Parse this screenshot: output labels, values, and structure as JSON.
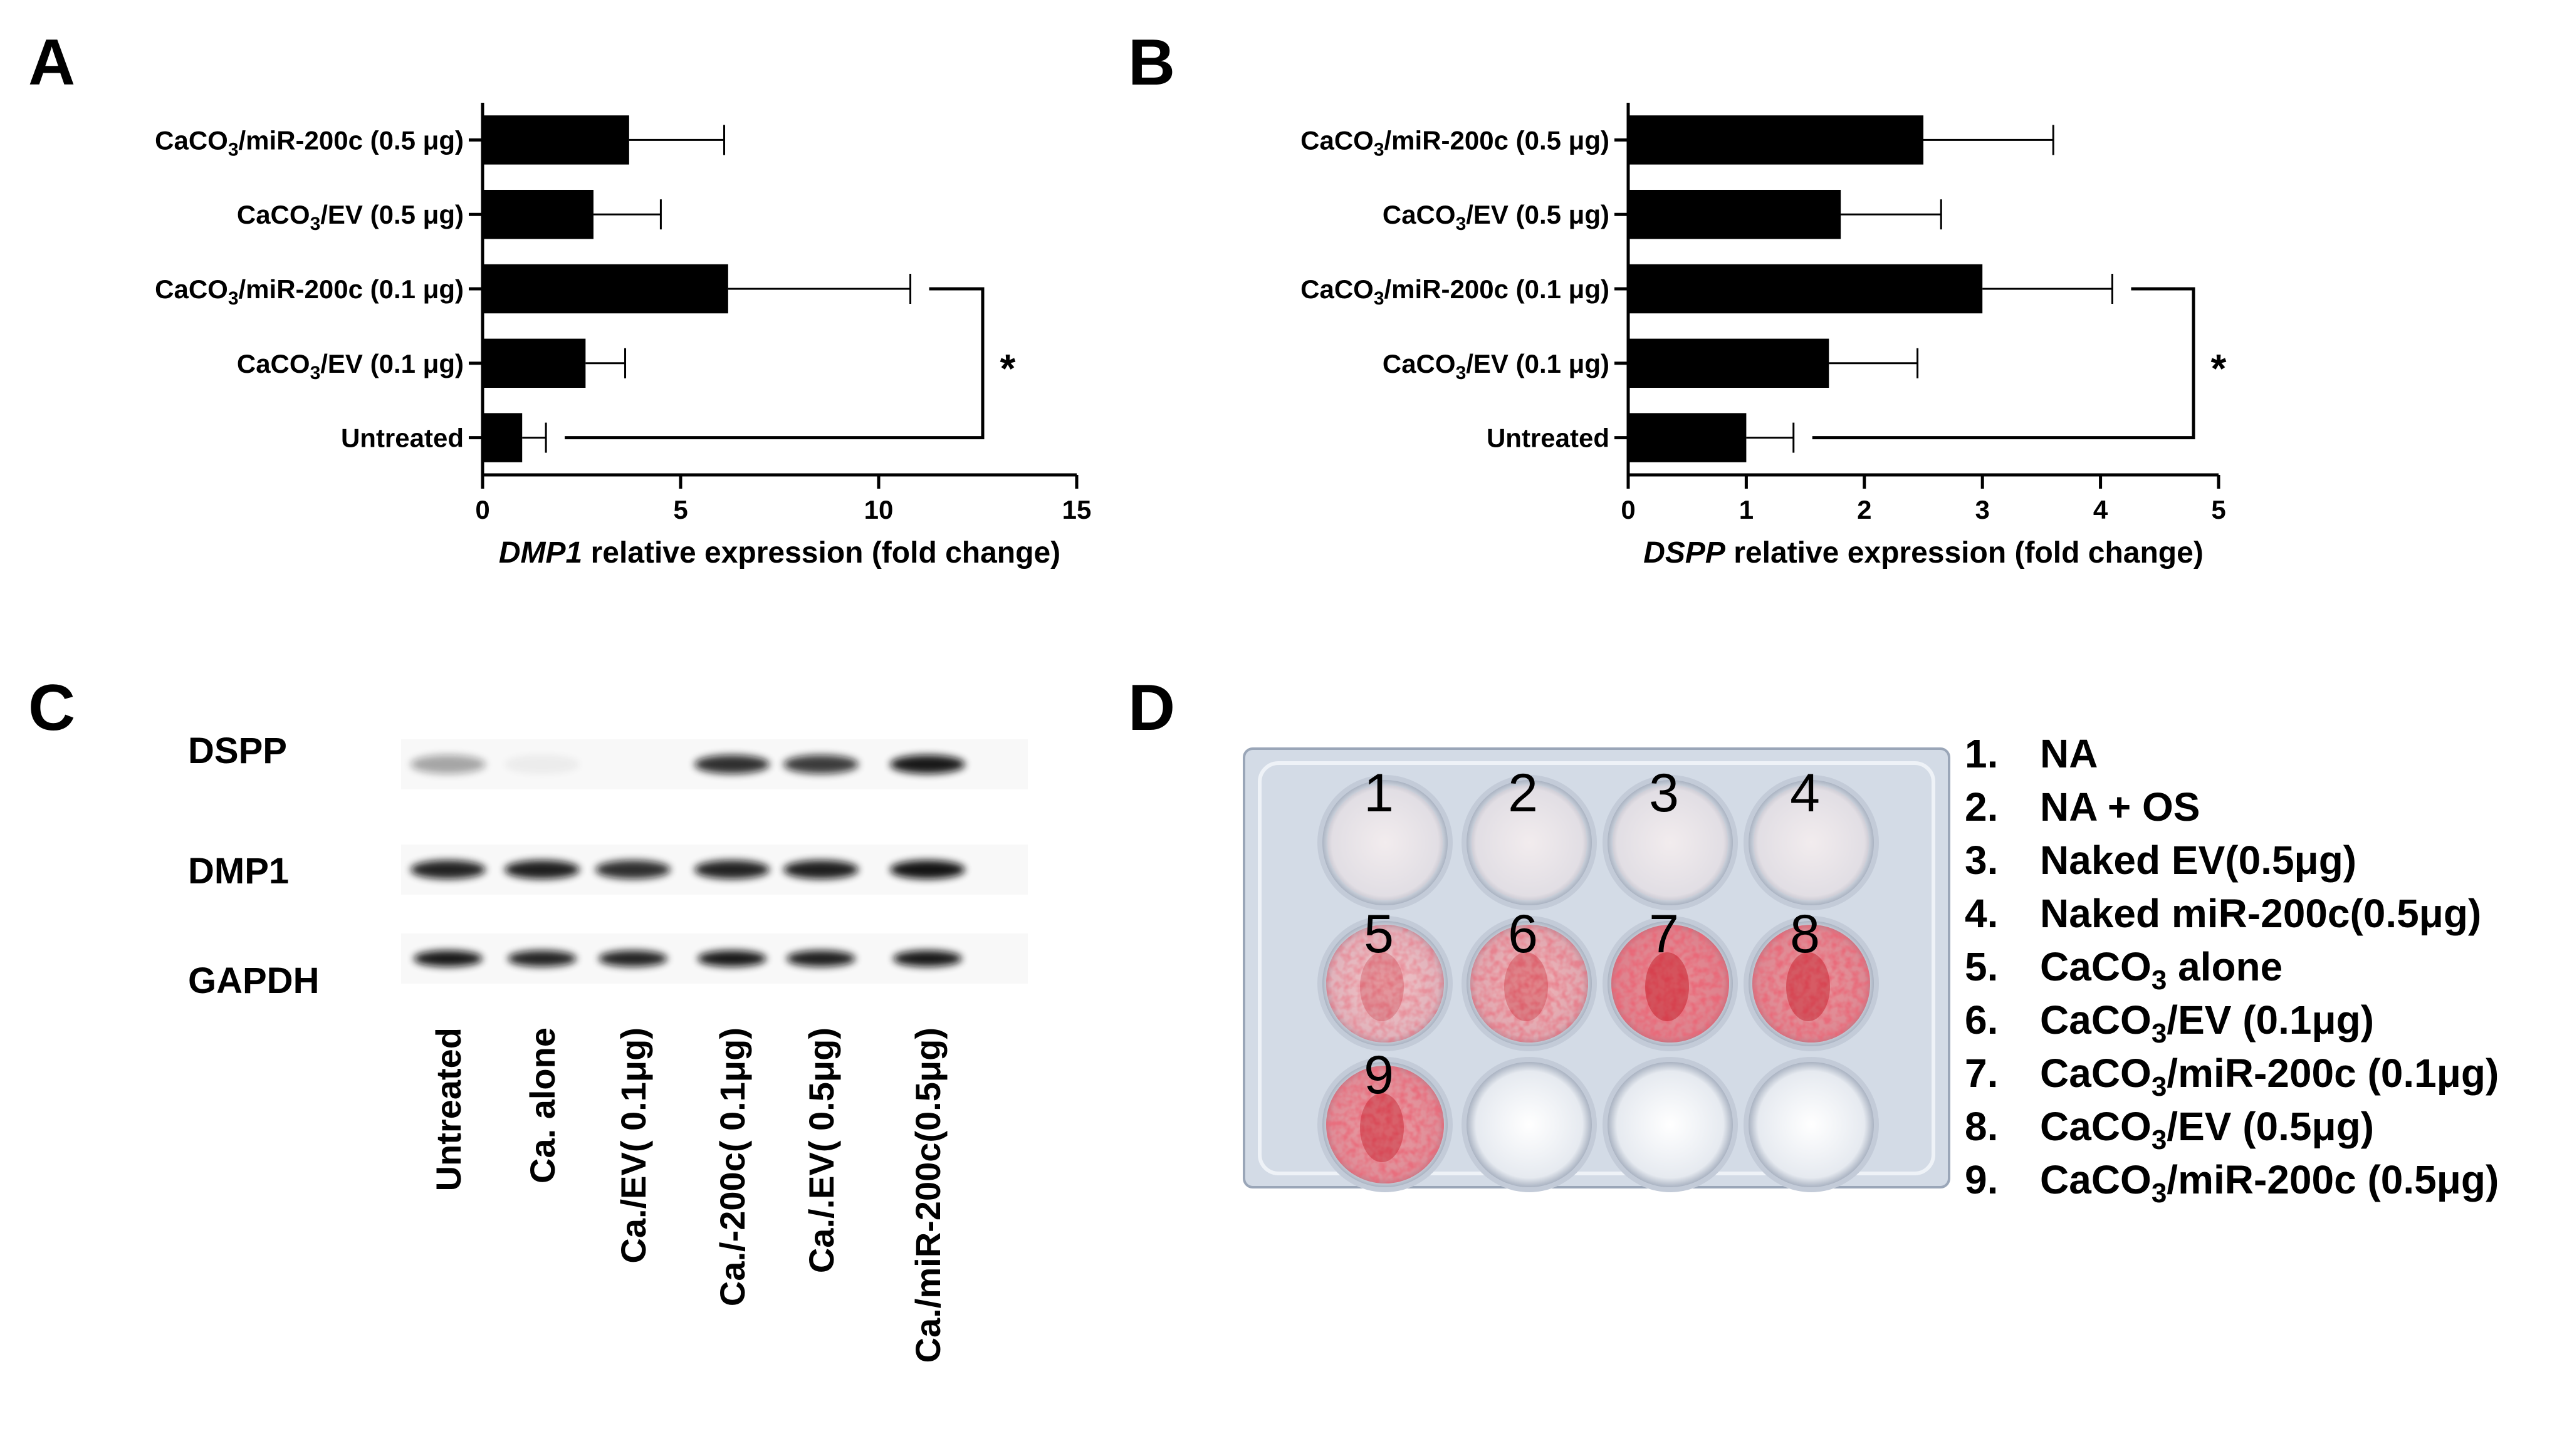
{
  "panels": {
    "A": {
      "letter": "A"
    },
    "B": {
      "letter": "B"
    },
    "C": {
      "letter": "C"
    },
    "D": {
      "letter": "D"
    }
  },
  "chart_data": [
    {
      "type": "bar",
      "orientation": "horizontal",
      "categories": [
        "CaCO3/miR-200c (0.5 μg)",
        "CaCO3/EV (0.5 μg)",
        "CaCO3/miR-200c (0.1 μg)",
        "CaCO3/EV (0.1 μg)",
        "Untreated"
      ],
      "category_labels": [
        {
          "pre": "CaCO",
          "sub": "3",
          "post": "/miR-200c (0.5 μg)"
        },
        {
          "pre": "CaCO",
          "sub": "3",
          "post": "/EV (0.5 μg)"
        },
        {
          "pre": "CaCO",
          "sub": "3",
          "post": "/miR-200c (0.1 μg)"
        },
        {
          "pre": "CaCO",
          "sub": "3",
          "post": "/EV (0.1 μg)"
        },
        {
          "pre": "Untreated",
          "sub": "",
          "post": ""
        }
      ],
      "values": [
        3.7,
        2.8,
        6.2,
        2.6,
        1.0
      ],
      "errors": [
        2.4,
        1.7,
        4.6,
        1.0,
        0.6
      ],
      "xlabel_italic": "DMP1",
      "xlabel_rest": " relative expression (fold change)",
      "xlim": [
        0,
        15
      ],
      "ticks": [
        0,
        5,
        10,
        15
      ],
      "significance": {
        "between": [
          "CaCO3/miR-200c (0.1 μg)",
          "Untreated"
        ],
        "label": "*"
      }
    },
    {
      "type": "bar",
      "orientation": "horizontal",
      "categories": [
        "CaCO3/miR-200c (0.5 μg)",
        "CaCO3/EV (0.5 μg)",
        "CaCO3/miR-200c (0.1 μg)",
        "CaCO3/EV (0.1 μg)",
        "Untreated"
      ],
      "category_labels": [
        {
          "pre": "CaCO",
          "sub": "3",
          "post": "/miR-200c (0.5 μg)"
        },
        {
          "pre": "CaCO",
          "sub": "3",
          "post": "/EV (0.5 μg)"
        },
        {
          "pre": "CaCO",
          "sub": "3",
          "post": "/miR-200c (0.1 μg)"
        },
        {
          "pre": "CaCO",
          "sub": "3",
          "post": "/EV (0.1 μg)"
        },
        {
          "pre": "Untreated",
          "sub": "",
          "post": ""
        }
      ],
      "values": [
        2.5,
        1.8,
        3.0,
        1.7,
        1.0
      ],
      "errors": [
        1.1,
        0.85,
        1.1,
        0.75,
        0.4
      ],
      "xlabel_italic": "DSPP",
      "xlabel_rest": " relative expression (fold change)",
      "xlim": [
        0,
        5
      ],
      "ticks": [
        0,
        1,
        2,
        3,
        4,
        5
      ],
      "significance": {
        "between": [
          "CaCO3/miR-200c (0.1 μg)",
          "Untreated"
        ],
        "label": "*"
      }
    }
  ],
  "western_blot": {
    "bands": [
      "DSPP",
      "DMP1",
      "GAPDH"
    ],
    "lanes": [
      "Untreated",
      "Ca.  alone",
      "Ca./EV( 0.1μg)",
      "Ca./-200c( 0.1μg)",
      "Ca./.EV( 0.5μg)",
      "Ca./miR-200c(0.5μg)"
    ],
    "intensity": {
      "DSPP": [
        0.35,
        0.05,
        0.0,
        0.85,
        0.8,
        0.95
      ],
      "DMP1": [
        0.9,
        0.92,
        0.85,
        0.9,
        0.92,
        0.97
      ],
      "GAPDH": [
        0.95,
        0.9,
        0.9,
        0.95,
        0.92,
        0.95
      ]
    }
  },
  "plate": {
    "well_numbers": [
      "1",
      "2",
      "3",
      "4",
      "5",
      "6",
      "7",
      "8",
      "9"
    ],
    "stain_level": [
      0.0,
      0.0,
      0.0,
      0.0,
      0.45,
      0.55,
      0.85,
      0.8,
      0.75
    ],
    "colors": {
      "stain": "#d4202f",
      "plate": "#d3dbe6",
      "empty_well": "#f3f5f8"
    }
  },
  "legend": [
    {
      "num": "1.",
      "pre": "NA",
      "sub": "",
      "post": ""
    },
    {
      "num": "2.",
      "pre": "NA + OS",
      "sub": "",
      "post": ""
    },
    {
      "num": "3.",
      "pre": "Naked EV(0.5μg)",
      "sub": "",
      "post": ""
    },
    {
      "num": "4.",
      "pre": "Naked miR-200c(0.5μg)",
      "sub": "",
      "post": ""
    },
    {
      "num": "5.",
      "pre": "CaCO",
      "sub": "3",
      "post": " alone"
    },
    {
      "num": "6.",
      "pre": "CaCO",
      "sub": "3",
      "post": "/EV (0.1μg)"
    },
    {
      "num": "7.",
      "pre": "CaCO",
      "sub": "3",
      "post": "/miR-200c  (0.1μg)"
    },
    {
      "num": "8.",
      "pre": "CaCO",
      "sub": "3",
      "post": "/EV (0.5μg)"
    },
    {
      "num": "9.",
      "pre": "CaCO",
      "sub": "3",
      "post": "/miR-200c  (0.5μg)"
    }
  ]
}
